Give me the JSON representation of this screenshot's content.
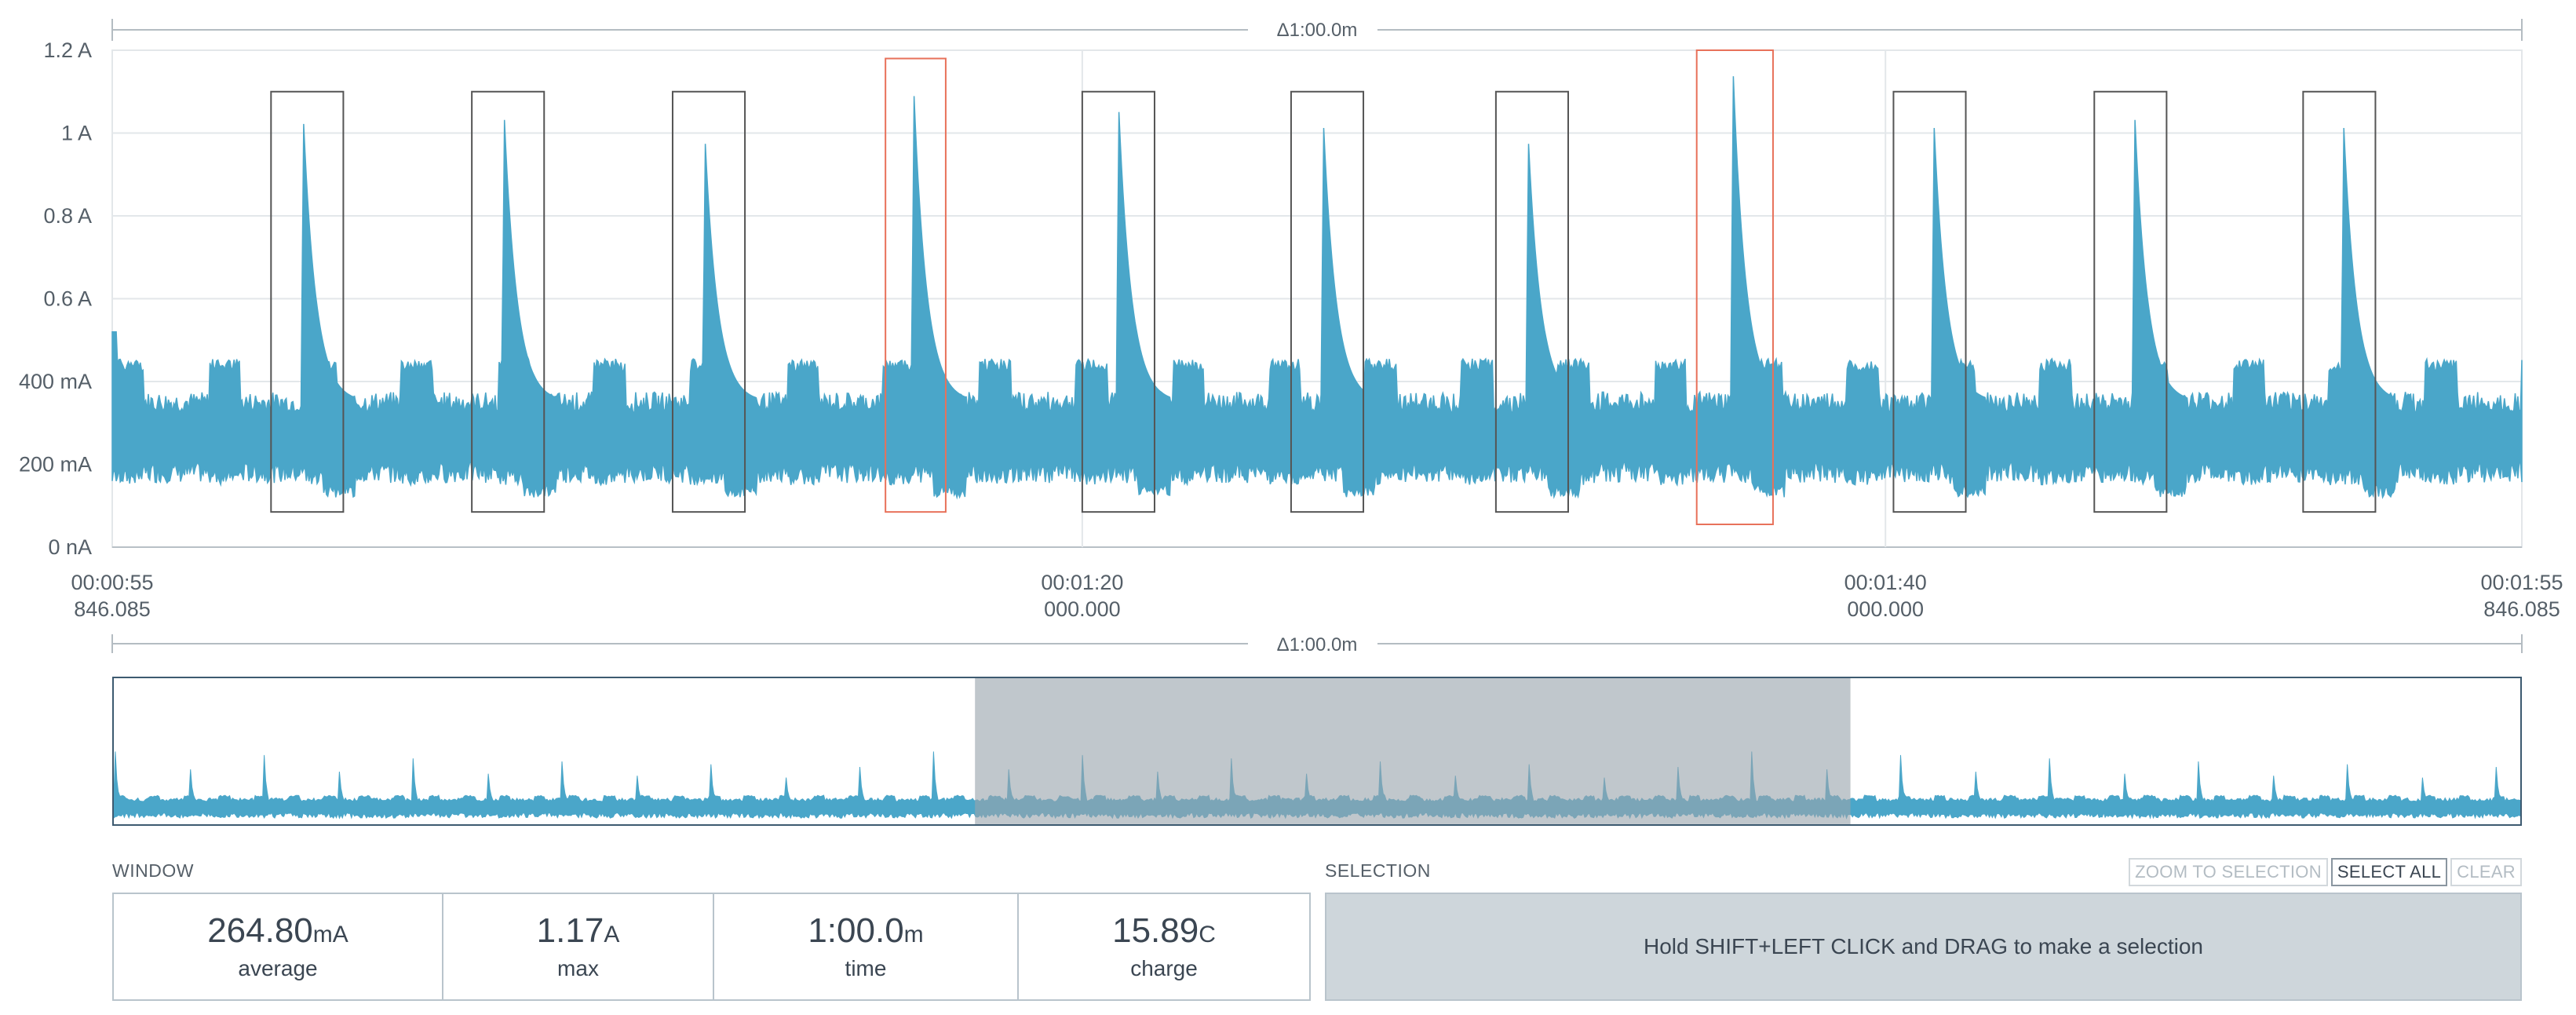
{
  "chart_data": [
    {
      "type": "line",
      "title": "",
      "xlabel": "",
      "ylabel": "",
      "window_span_label": "Δ1:00.0m",
      "y_ticks": [
        "0 nA",
        "200 mA",
        "400 mA",
        "0.6 A",
        "0.8 A",
        "1 A",
        "1.2 A"
      ],
      "y_tick_values": [
        0,
        0.2,
        0.4,
        0.6,
        0.8,
        1.0,
        1.2
      ],
      "ylim": [
        0,
        1.2
      ],
      "ylim_unit": "A",
      "x_range_seconds": [
        55.846085,
        115.846085
      ],
      "x_ticks": [
        {
          "t": 55.846085,
          "line1": "00:00:55",
          "line2": "846.085"
        },
        {
          "t": 80.0,
          "line1": "00:01:20",
          "line2": "000.000"
        },
        {
          "t": 100.0,
          "line1": "00:01:40",
          "line2": "000.000"
        },
        {
          "t": 115.846085,
          "line1": "00:01:55",
          "line2": "846.085"
        }
      ],
      "grid": true,
      "series": [
        {
          "color": "#4aa6c9",
          "baseline_low": 0.18,
          "baseline_high": 0.35,
          "burst_high": 0.44,
          "burst_period_s": 2.4,
          "peaks": [
            {
              "t": 60.6,
              "value": 1.05
            },
            {
              "t": 65.6,
              "value": 1.06
            },
            {
              "t": 70.6,
              "value": 1.0
            },
            {
              "t": 75.8,
              "value": 1.12
            },
            {
              "t": 80.9,
              "value": 1.08
            },
            {
              "t": 86.0,
              "value": 1.04
            },
            {
              "t": 91.1,
              "value": 1.0
            },
            {
              "t": 96.2,
              "value": 1.17
            },
            {
              "t": 101.2,
              "value": 1.04
            },
            {
              "t": 106.2,
              "value": 1.06
            },
            {
              "t": 111.4,
              "value": 1.04
            }
          ]
        }
      ],
      "highlight_boxes": [
        {
          "t0": 59.8,
          "t1": 61.6,
          "y0": 0.085,
          "y1": 1.1,
          "color": "#555555"
        },
        {
          "t0": 64.8,
          "t1": 66.6,
          "y0": 0.085,
          "y1": 1.1,
          "color": "#555555"
        },
        {
          "t0": 69.8,
          "t1": 71.6,
          "y0": 0.085,
          "y1": 1.1,
          "color": "#555555"
        },
        {
          "t0": 75.1,
          "t1": 76.6,
          "y0": 0.085,
          "y1": 1.18,
          "color": "#e8715a"
        },
        {
          "t0": 80.0,
          "t1": 81.8,
          "y0": 0.085,
          "y1": 1.1,
          "color": "#555555"
        },
        {
          "t0": 85.2,
          "t1": 87.0,
          "y0": 0.085,
          "y1": 1.1,
          "color": "#555555"
        },
        {
          "t0": 90.3,
          "t1": 92.1,
          "y0": 0.085,
          "y1": 1.1,
          "color": "#555555"
        },
        {
          "t0": 95.3,
          "t1": 97.2,
          "y0": 0.055,
          "y1": 1.2,
          "color": "#e8715a"
        },
        {
          "t0": 100.2,
          "t1": 102.0,
          "y0": 0.085,
          "y1": 1.1,
          "color": "#555555"
        },
        {
          "t0": 105.2,
          "t1": 107.0,
          "y0": 0.085,
          "y1": 1.1,
          "color": "#555555"
        },
        {
          "t0": 110.4,
          "t1": 112.2,
          "y0": 0.085,
          "y1": 1.1,
          "color": "#555555"
        }
      ]
    },
    {
      "type": "area",
      "title": "",
      "window_span_label": "Δ1:00.0m",
      "x_range_seconds": [
        0,
        165
      ],
      "window_range_seconds": [
        55.846085,
        115.846085
      ],
      "ylim": [
        0,
        1.2
      ],
      "series": [
        {
          "color": "#4aa6c9",
          "peak_period_s": 5.1,
          "peak_value": 0.55,
          "baseline_high": 0.3
        }
      ]
    }
  ],
  "window": {
    "label": "WINDOW",
    "stats": [
      {
        "value": "264.80",
        "unit": "mA",
        "label": "average"
      },
      {
        "value": "1.17",
        "unit": "A",
        "label": "max"
      },
      {
        "value": "1:00.0",
        "unit": "m",
        "label": "time"
      },
      {
        "value": "15.89",
        "unit": "C",
        "label": "charge"
      }
    ]
  },
  "selection": {
    "label": "SELECTION",
    "hint": "Hold SHIFT+LEFT CLICK and DRAG to make a selection",
    "buttons": {
      "zoom": "ZOOM TO SELECTION",
      "select_all": "SELECT ALL",
      "clear": "CLEAR"
    }
  }
}
